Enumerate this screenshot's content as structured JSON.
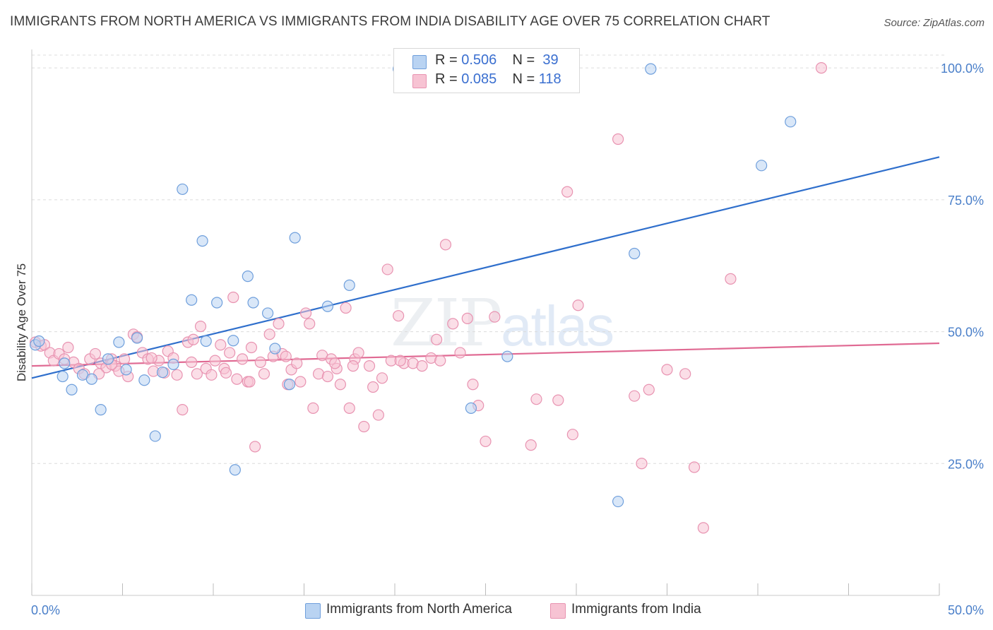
{
  "header": {
    "title": "IMMIGRANTS FROM NORTH AMERICA VS IMMIGRANTS FROM INDIA DISABILITY AGE OVER 75 CORRELATION CHART",
    "source": "Source: ZipAtlas.com"
  },
  "legend": {
    "rows": [
      {
        "r_label": "R = ",
        "r_value": "0.506",
        "n_label": "N = ",
        "n_value": "39"
      },
      {
        "r_label": "R = ",
        "r_value": "0.085",
        "n_label": "N = ",
        "n_value": "118"
      }
    ]
  },
  "bottom_legend": {
    "items": [
      {
        "label": "Immigrants from North America"
      },
      {
        "label": "Immigrants from India"
      }
    ]
  },
  "watermark": {
    "zip": "ZIP",
    "atlas": "atlas"
  },
  "chart_data": {
    "type": "scatter",
    "title": "IMMIGRANTS FROM NORTH AMERICA VS IMMIGRANTS FROM INDIA DISABILITY AGE OVER 75 CORRELATION CHART",
    "xlabel": "",
    "ylabel": "Disability Age Over 75",
    "xlim": [
      0,
      50
    ],
    "ylim": [
      0,
      103.5
    ],
    "x_tick_labels": [
      "0.0%",
      "50.0%"
    ],
    "y_ticks": [
      25,
      50,
      75,
      100
    ],
    "y_tick_labels": [
      "25.0%",
      "50.0%",
      "75.0%",
      "100.0%"
    ],
    "grid": true,
    "legend_position": "top-center",
    "colors": {
      "north_america_fill": "#b9d3f2",
      "north_america_stroke": "#6f9fdc",
      "north_america_line": "#2f6fcc",
      "india_fill": "#f7c3d3",
      "india_stroke": "#e893b1",
      "india_line": "#e06a93",
      "tick_text": "#4a7fc9"
    },
    "series": [
      {
        "name": "Immigrants from North America",
        "color_key": "north_america",
        "r": 0.506,
        "n": 39,
        "trend": {
          "x": [
            0,
            50
          ],
          "y": [
            41.2,
            83.1
          ]
        },
        "points": [
          [
            0.2,
            47.5
          ],
          [
            0.4,
            48.2
          ],
          [
            1.8,
            44.0
          ],
          [
            1.7,
            41.5
          ],
          [
            2.2,
            39.0
          ],
          [
            2.8,
            41.8
          ],
          [
            3.3,
            41.0
          ],
          [
            3.8,
            35.2
          ],
          [
            4.2,
            44.8
          ],
          [
            4.8,
            48.0
          ],
          [
            5.2,
            42.8
          ],
          [
            5.8,
            48.8
          ],
          [
            6.2,
            40.8
          ],
          [
            6.8,
            30.2
          ],
          [
            7.2,
            42.3
          ],
          [
            7.8,
            43.8
          ],
          [
            8.3,
            77.0
          ],
          [
            8.8,
            56.0
          ],
          [
            9.4,
            67.2
          ],
          [
            9.6,
            48.2
          ],
          [
            10.2,
            55.5
          ],
          [
            11.1,
            48.3
          ],
          [
            11.2,
            23.8
          ],
          [
            11.9,
            60.5
          ],
          [
            12.2,
            55.5
          ],
          [
            13.0,
            53.5
          ],
          [
            13.4,
            46.8
          ],
          [
            14.2,
            40.0
          ],
          [
            14.5,
            67.8
          ],
          [
            16.3,
            54.8
          ],
          [
            17.5,
            58.8
          ],
          [
            20.2,
            99.8
          ],
          [
            24.2,
            35.5
          ],
          [
            26.2,
            45.3
          ],
          [
            32.3,
            17.8
          ],
          [
            33.2,
            64.8
          ],
          [
            34.1,
            99.8
          ],
          [
            40.2,
            81.5
          ],
          [
            41.8,
            89.8
          ]
        ]
      },
      {
        "name": "Immigrants from India",
        "color_key": "india",
        "r": 0.085,
        "n": 118,
        "trend": {
          "x": [
            0,
            50
          ],
          "y": [
            43.5,
            47.8
          ]
        },
        "points": [
          [
            0.2,
            48.0
          ],
          [
            0.5,
            47.3
          ],
          [
            0.7,
            47.5
          ],
          [
            1.0,
            46.0
          ],
          [
            1.2,
            44.5
          ],
          [
            1.5,
            45.8
          ],
          [
            1.8,
            44.8
          ],
          [
            2.0,
            47.0
          ],
          [
            2.3,
            44.2
          ],
          [
            2.6,
            43.0
          ],
          [
            2.9,
            42.0
          ],
          [
            3.2,
            44.8
          ],
          [
            3.5,
            45.8
          ],
          [
            3.8,
            44.0
          ],
          [
            4.1,
            43.2
          ],
          [
            4.4,
            44.8
          ],
          [
            4.6,
            43.5
          ],
          [
            4.8,
            42.5
          ],
          [
            5.1,
            44.8
          ],
          [
            5.3,
            41.5
          ],
          [
            5.6,
            49.5
          ],
          [
            5.8,
            49.0
          ],
          [
            6.1,
            46.0
          ],
          [
            6.4,
            44.8
          ],
          [
            6.7,
            42.5
          ],
          [
            7.0,
            44.5
          ],
          [
            7.3,
            42.2
          ],
          [
            7.5,
            46.3
          ],
          [
            7.8,
            45.0
          ],
          [
            8.0,
            41.8
          ],
          [
            8.3,
            35.2
          ],
          [
            8.6,
            48.0
          ],
          [
            8.8,
            44.2
          ],
          [
            9.1,
            42.0
          ],
          [
            9.3,
            51.0
          ],
          [
            9.6,
            43.0
          ],
          [
            9.9,
            41.8
          ],
          [
            10.1,
            44.5
          ],
          [
            10.4,
            47.5
          ],
          [
            10.6,
            43.0
          ],
          [
            10.9,
            46.0
          ],
          [
            11.1,
            56.5
          ],
          [
            11.3,
            41.0
          ],
          [
            11.6,
            44.8
          ],
          [
            11.9,
            40.5
          ],
          [
            12.1,
            47.0
          ],
          [
            12.3,
            28.2
          ],
          [
            12.6,
            44.2
          ],
          [
            12.8,
            42.0
          ],
          [
            13.1,
            49.5
          ],
          [
            13.3,
            45.3
          ],
          [
            13.6,
            51.5
          ],
          [
            13.8,
            45.8
          ],
          [
            14.1,
            40.0
          ],
          [
            14.3,
            42.8
          ],
          [
            14.6,
            44.0
          ],
          [
            14.8,
            40.5
          ],
          [
            15.1,
            53.5
          ],
          [
            15.3,
            51.5
          ],
          [
            15.5,
            35.5
          ],
          [
            15.8,
            42.0
          ],
          [
            16.0,
            45.5
          ],
          [
            16.3,
            41.5
          ],
          [
            16.5,
            44.8
          ],
          [
            16.8,
            43.0
          ],
          [
            17.0,
            40.0
          ],
          [
            17.3,
            54.5
          ],
          [
            17.5,
            35.5
          ],
          [
            17.8,
            44.8
          ],
          [
            18.0,
            46.0
          ],
          [
            18.3,
            32.0
          ],
          [
            18.6,
            43.5
          ],
          [
            18.8,
            39.5
          ],
          [
            19.1,
            34.2
          ],
          [
            19.3,
            41.2
          ],
          [
            19.6,
            61.8
          ],
          [
            19.8,
            44.5
          ],
          [
            20.2,
            53.0
          ],
          [
            20.5,
            44.0
          ],
          [
            21.0,
            44.0
          ],
          [
            21.5,
            43.5
          ],
          [
            22.0,
            45.0
          ],
          [
            22.3,
            48.5
          ],
          [
            22.8,
            66.5
          ],
          [
            23.2,
            51.5
          ],
          [
            23.6,
            46.0
          ],
          [
            24.0,
            52.5
          ],
          [
            24.3,
            40.0
          ],
          [
            24.6,
            36.0
          ],
          [
            25.0,
            29.2
          ],
          [
            25.5,
            52.8
          ],
          [
            27.5,
            28.5
          ],
          [
            27.8,
            37.2
          ],
          [
            29.0,
            37.0
          ],
          [
            29.5,
            76.5
          ],
          [
            30.1,
            55.0
          ],
          [
            29.8,
            30.5
          ],
          [
            32.3,
            86.5
          ],
          [
            33.2,
            37.8
          ],
          [
            33.6,
            25.0
          ],
          [
            34.0,
            39.0
          ],
          [
            35.0,
            42.8
          ],
          [
            36.5,
            24.3
          ],
          [
            36.0,
            42.0
          ],
          [
            37.0,
            12.8
          ],
          [
            38.5,
            60.0
          ],
          [
            43.5,
            100.0
          ],
          [
            12.0,
            40.5
          ],
          [
            16.7,
            44.0
          ],
          [
            22.5,
            44.5
          ],
          [
            20.3,
            44.5
          ],
          [
            6.6,
            45.0
          ],
          [
            3.7,
            42.0
          ],
          [
            10.7,
            42.2
          ],
          [
            8.9,
            48.5
          ],
          [
            14.0,
            45.3
          ],
          [
            17.7,
            43.5
          ],
          [
            4.4,
            43.8
          ]
        ]
      }
    ]
  }
}
